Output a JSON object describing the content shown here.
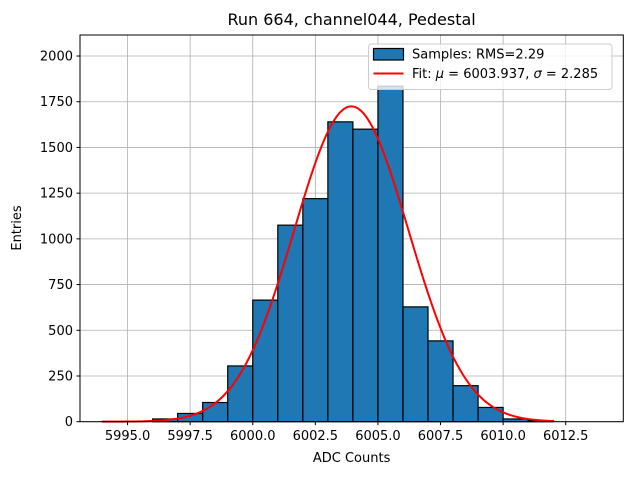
{
  "chart_data": {
    "type": "bar",
    "subtype": "histogram_with_gaussian_fit",
    "title": "Run 664, channel044, Pedestal",
    "xlabel": "ADC Counts",
    "ylabel": "Entries",
    "grid": true,
    "xlim": [
      5993.1,
      6014.8
    ],
    "ylim": [
      0,
      2115
    ],
    "bin_edges": [
      5996,
      5997,
      5998,
      5999,
      6000,
      6001,
      6002,
      6003,
      6004,
      6005,
      6006,
      6007,
      6008,
      6009,
      6010,
      6011,
      6012
    ],
    "counts": [
      15,
      45,
      105,
      305,
      665,
      1075,
      1220,
      1640,
      1600,
      1835,
      628,
      442,
      197,
      78,
      15,
      6
    ],
    "x_tick_values": [
      5995.0,
      5997.5,
      6000.0,
      6002.5,
      6005.0,
      6007.5,
      6010.0,
      6012.5
    ],
    "x_tick_labels": [
      "5995.0",
      "5997.5",
      "6000.0",
      "6002.5",
      "6005.0",
      "6007.5",
      "6010.0",
      "6012.5"
    ],
    "y_tick_values": [
      0,
      250,
      500,
      750,
      1000,
      1250,
      1500,
      1750,
      2000
    ],
    "y_tick_labels": [
      "0",
      "250",
      "500",
      "750",
      "1000",
      "1250",
      "1500",
      "1750",
      "2000"
    ],
    "fit": {
      "mu": 6003.937,
      "sigma": 2.285,
      "amplitude": 1725,
      "x_start": 5994.0,
      "x_end": 6012.0
    },
    "legend": {
      "position": "upper right",
      "samples_label": "Samples: RMS=2.29",
      "fit_label": "Fit: μ = 6003.937, σ = 2.285",
      "fit_label_parts": [
        {
          "text": "Fit: ",
          "italic": false
        },
        {
          "text": "μ",
          "italic": true
        },
        {
          "text": " = 6003.937, ",
          "italic": false
        },
        {
          "text": "σ",
          "italic": true
        },
        {
          "text": " = 2.285",
          "italic": false
        }
      ]
    },
    "colors": {
      "bar_fill": "#1f77b4",
      "bar_edge": "#000000",
      "fit_line": "#ff0000",
      "grid": "#b0b0b0",
      "spine": "#000000",
      "legend_border": "#cccccc",
      "legend_bg": "rgba(255,255,255,0.8)"
    }
  }
}
